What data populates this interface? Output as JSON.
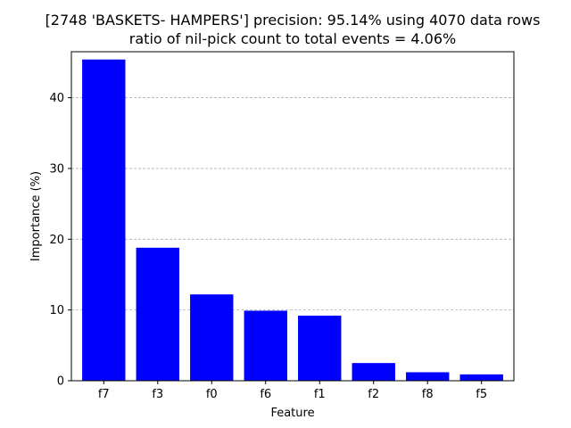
{
  "chart_data": {
    "type": "bar",
    "title_line1": "[2748 'BASKETS- HAMPERS'] precision: 95.14% using 4070 data rows",
    "title_line2": "ratio of nil-pick count to total events = 4.06%",
    "xlabel": "Feature",
    "ylabel": "Importance (%)",
    "categories": [
      "f7",
      "f3",
      "f0",
      "f6",
      "f1",
      "f2",
      "f8",
      "f5"
    ],
    "values": [
      45.4,
      18.8,
      12.2,
      9.9,
      9.2,
      2.5,
      1.2,
      0.9
    ],
    "ylim": [
      0,
      46.5
    ],
    "yticks": [
      0,
      10,
      20,
      30,
      40
    ],
    "grid": "y-dashed",
    "bar_color": "#0000ff"
  }
}
